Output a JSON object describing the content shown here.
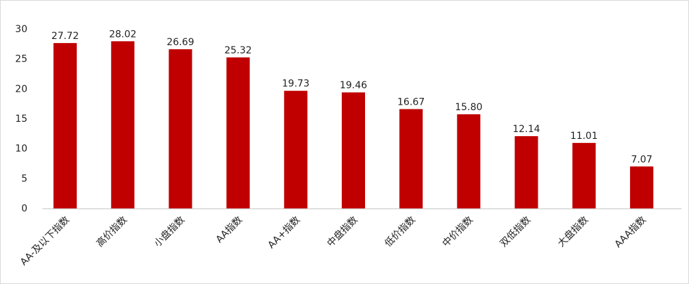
{
  "chart_data": {
    "type": "bar",
    "categories": [
      "AA-及以下指数",
      "高价指数",
      "小盘指数",
      "AA指数",
      "AA+指数",
      "中盘指数",
      "低价指数",
      "中价指数",
      "双低指数",
      "大盘指数",
      "AAA指数"
    ],
    "values": [
      27.72,
      28.02,
      26.69,
      25.32,
      19.73,
      19.46,
      16.67,
      15.8,
      12.14,
      11.01,
      7.07
    ],
    "value_labels": [
      "27.72",
      "28.02",
      "26.69",
      "25.32",
      "19.73",
      "19.46",
      "16.67",
      "15.80",
      "12.14",
      "11.01",
      "7.07"
    ],
    "color": "#c00000",
    "ylim": [
      0,
      30
    ],
    "yticks": [
      0,
      5,
      10,
      15,
      20,
      25,
      30
    ],
    "grid": false
  }
}
